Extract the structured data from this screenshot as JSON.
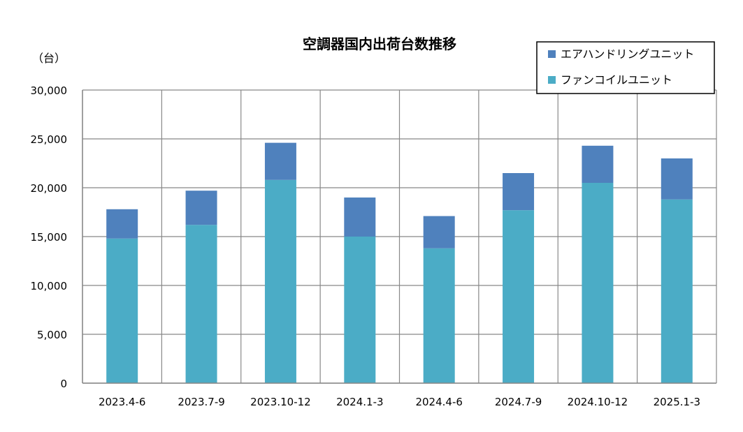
{
  "chart_data": {
    "type": "bar",
    "stacked": true,
    "title": "空調器国内出荷台数推移",
    "unit_label": "（台）",
    "xlabel": "",
    "ylabel": "",
    "categories": [
      "2023.4-6",
      "2023.7-9",
      "2023.10-12",
      "2024.1-3",
      "2024.4-6",
      "2024.7-9",
      "2024.10-12",
      "2025.1-3"
    ],
    "ylim": [
      0,
      30000
    ],
    "yticks": [
      0,
      5000,
      10000,
      15000,
      20000,
      25000,
      30000
    ],
    "ytick_labels": [
      "0",
      "5,000",
      "10,000",
      "15,000",
      "20,000",
      "25,000",
      "30,000"
    ],
    "grid": true,
    "legend_position": "top-right",
    "series": [
      {
        "name": "ファンコイルユニット",
        "color": "#4bacc6",
        "values": [
          14800,
          16200,
          20800,
          15000,
          13800,
          17700,
          20500,
          18800
        ]
      },
      {
        "name": "エアハンドリングユニット",
        "color": "#4f81bd",
        "values": [
          3000,
          3500,
          3800,
          4000,
          3300,
          3800,
          3800,
          4200
        ]
      }
    ]
  }
}
